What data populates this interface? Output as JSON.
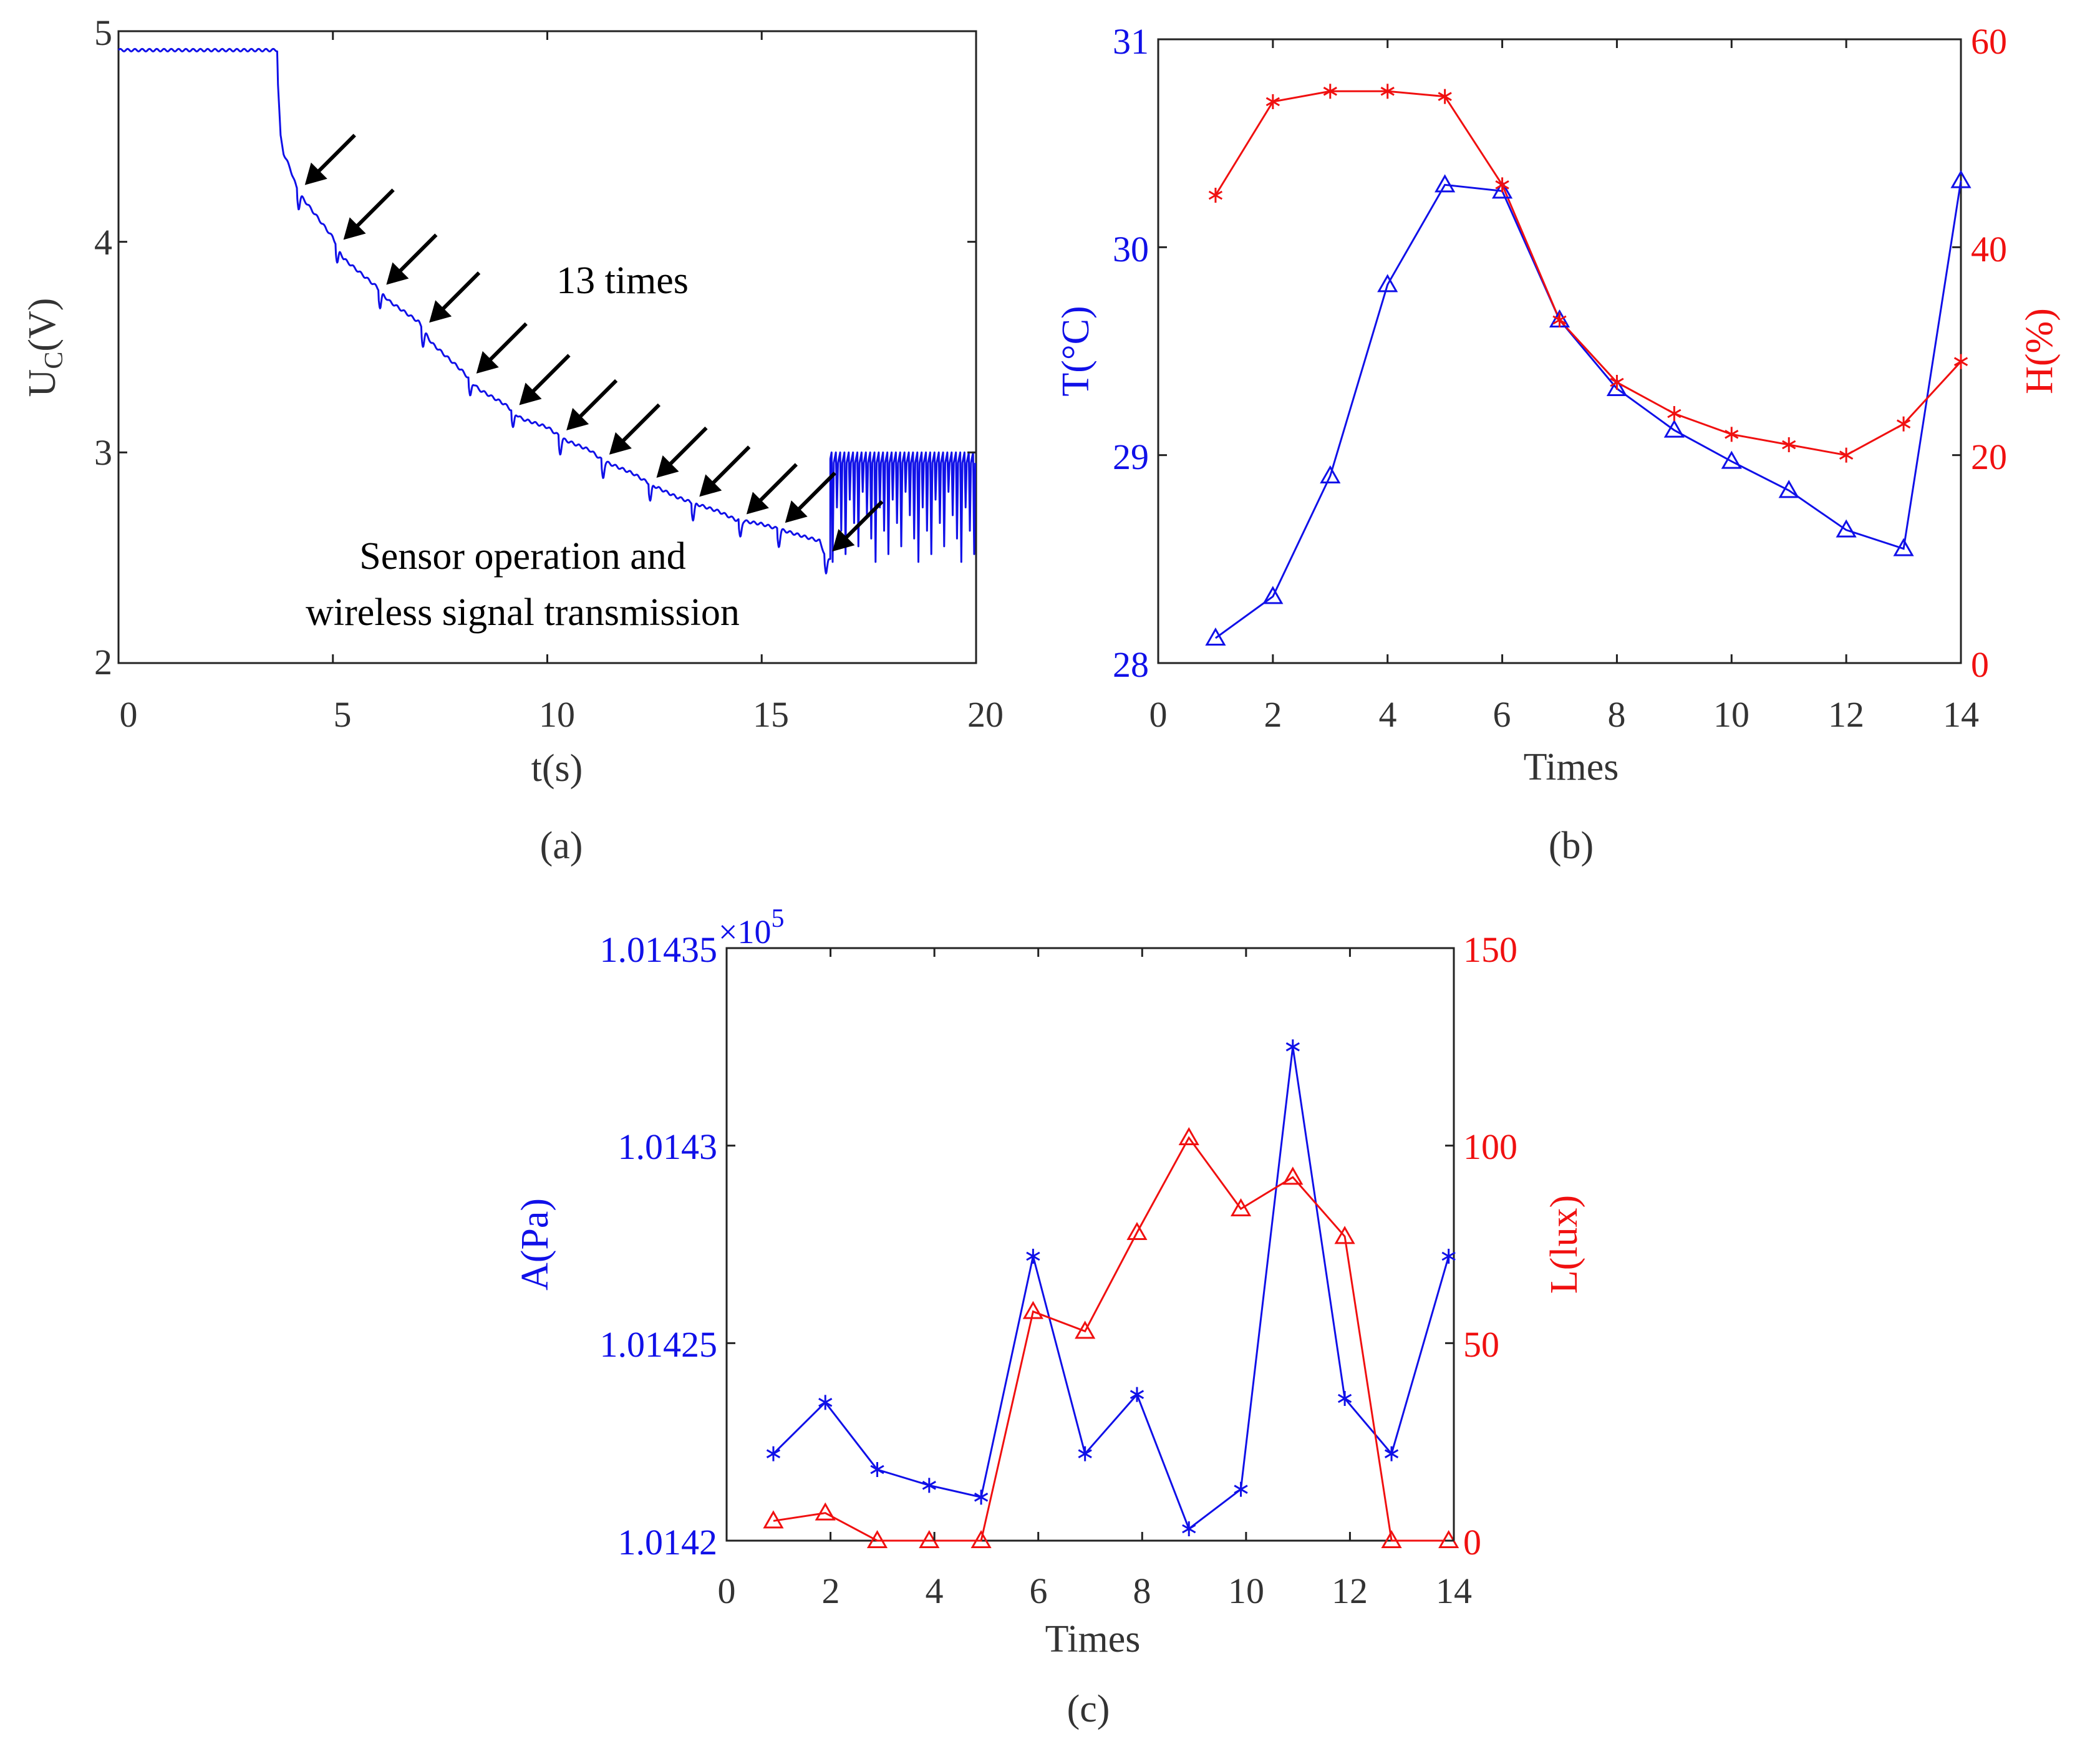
{
  "colors": {
    "blue": "#1010e8",
    "red": "#f01010",
    "axis": "#222222",
    "black": "#000000"
  },
  "chart_data": [
    {
      "id": "a",
      "type": "line",
      "panel_label": "(a)",
      "xlabel": "t(s)",
      "ylabel_main": "U",
      "ylabel_sub": "C",
      "ylabel_tail": "(V)",
      "xlim": [
        0,
        20
      ],
      "ylim": [
        2,
        5
      ],
      "xticks": [
        0,
        5,
        10,
        15,
        20
      ],
      "yticks": [
        2,
        3,
        4,
        5
      ],
      "annotation_count": "13 times",
      "annotation_desc_line1": "Sensor operation and",
      "annotation_desc_line2": "wireless signal transmission",
      "series": [
        {
          "name": "U_C",
          "color": "#1010e8",
          "x": [
            0,
            3.7,
            3.72,
            3.78,
            3.85,
            4.0,
            4.15,
            4.25,
            5.0,
            5.25,
            6.0,
            6.3,
            7.0,
            7.3,
            8.0,
            8.4,
            9.0,
            9.4,
            10.0,
            10.4,
            11.0,
            11.3,
            12.0,
            12.4,
            13.0,
            13.4,
            14.0,
            14.4,
            15.0,
            15.5,
            16.0,
            16.35,
            16.5
          ],
          "y": [
            4.91,
            4.91,
            4.75,
            4.5,
            4.42,
            4.35,
            4.26,
            4.22,
            4.02,
            3.92,
            3.79,
            3.72,
            3.62,
            3.52,
            3.39,
            3.3,
            3.23,
            3.16,
            3.12,
            3.06,
            3.01,
            2.96,
            2.9,
            2.85,
            2.79,
            2.76,
            2.72,
            2.68,
            2.66,
            2.63,
            2.6,
            2.58,
            2.5
          ]
        }
      ],
      "dips": [
        4.2,
        5.1,
        6.1,
        7.1,
        8.2,
        9.2,
        10.3,
        11.3,
        12.4,
        13.4,
        14.5,
        15.4,
        16.5
      ],
      "oscillation": {
        "x_start": 16.6,
        "x_end": 20,
        "high": 3.0,
        "low_min": 2.48,
        "low_max": 2.85
      }
    },
    {
      "id": "b",
      "type": "line",
      "panel_label": "(b)",
      "xlabel": "Times",
      "ylabel_left": "T(°C)",
      "ylabel_right": "H(%)",
      "xlim": [
        0,
        14
      ],
      "ylim_left": [
        28,
        31
      ],
      "ylim_right": [
        0,
        60
      ],
      "xticks": [
        0,
        2,
        4,
        6,
        8,
        10,
        12,
        14
      ],
      "yticks_left": [
        28,
        29,
        30,
        31
      ],
      "yticks_right": [
        0,
        20,
        40,
        60
      ],
      "series": [
        {
          "name": "T",
          "axis": "left",
          "marker": "triangle",
          "color": "#1010e8",
          "x": [
            1,
            2,
            3,
            4,
            5,
            6,
            7,
            8,
            9,
            10,
            11,
            12,
            13,
            14
          ],
          "values": [
            28.12,
            28.32,
            28.9,
            29.82,
            30.3,
            30.27,
            29.65,
            29.32,
            29.12,
            28.97,
            28.83,
            28.64,
            28.55,
            30.32
          ]
        },
        {
          "name": "H",
          "axis": "right",
          "marker": "star",
          "color": "#f01010",
          "x": [
            1,
            2,
            3,
            4,
            5,
            6,
            7,
            8,
            9,
            10,
            11,
            12,
            13,
            14
          ],
          "values": [
            45,
            54,
            55,
            55,
            54.5,
            46,
            33,
            27,
            24,
            22,
            21,
            20,
            23,
            29
          ]
        }
      ]
    },
    {
      "id": "c",
      "type": "line",
      "panel_label": "(c)",
      "xlabel": "Times",
      "ylabel_left": "A(Pa)",
      "ylabel_right": "L(lux)",
      "multiplier": "×10",
      "multiplier_exp": "5",
      "xlim": [
        0,
        14
      ],
      "ylim_left": [
        1.0142,
        1.01435
      ],
      "ylim_right": [
        0,
        150
      ],
      "xticks": [
        0,
        2,
        4,
        6,
        8,
        10,
        12,
        14
      ],
      "yticks_left": [
        "1.0142",
        "1.01425",
        "1.0143",
        "1.01435"
      ],
      "yticks_right": [
        0,
        50,
        100,
        150
      ],
      "series": [
        {
          "name": "A",
          "axis": "left",
          "marker": "star",
          "color": "#1010e8",
          "x": [
            0.9,
            1.9,
            2.9,
            3.9,
            4.9,
            5.9,
            6.9,
            7.9,
            8.9,
            9.9,
            10.9,
            11.9,
            12.8,
            13.9
          ],
          "values": [
            1.014222,
            1.014235,
            1.014218,
            1.014214,
            1.014211,
            1.014272,
            1.014222,
            1.014237,
            1.014203,
            1.014213,
            1.014325,
            1.014236,
            1.014222,
            1.014272
          ]
        },
        {
          "name": "L",
          "axis": "right",
          "marker": "triangle",
          "color": "#f01010",
          "x": [
            0.9,
            1.9,
            2.9,
            3.9,
            4.9,
            5.9,
            6.9,
            7.9,
            8.9,
            9.9,
            10.9,
            11.9,
            12.8,
            13.9
          ],
          "values": [
            5,
            7,
            0,
            0,
            0,
            58,
            53,
            78,
            102,
            84,
            92,
            77,
            0,
            0
          ]
        }
      ]
    }
  ]
}
